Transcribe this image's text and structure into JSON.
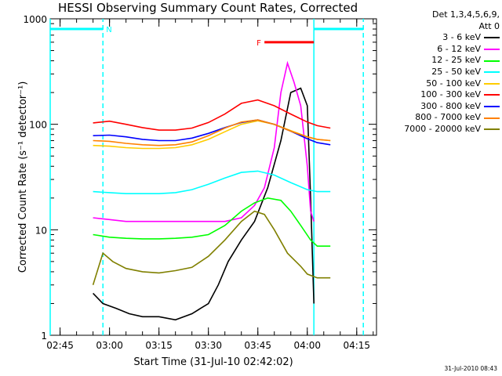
{
  "chart_data": {
    "type": "line",
    "title": "HESSI Observing Summary Count Rates, Corrected",
    "ylabel": "Corrected Count Rate (s⁻¹ detector⁻¹)",
    "xlabel": "Start Time (31-Jul-10 02:42:02)",
    "yscale": "log",
    "ylim": [
      1,
      1000
    ],
    "xlim": [
      "02:42",
      "04:21"
    ],
    "x_ticks": [
      "02:45",
      "03:00",
      "03:15",
      "03:30",
      "03:45",
      "04:00",
      "04:15"
    ],
    "y_ticks": [
      "1",
      "10",
      "100",
      "1000"
    ],
    "series": [
      {
        "name": "3 - 6 keV",
        "color": "#000000",
        "x": [
          "02:55",
          "02:58",
          "03:02",
          "03:06",
          "03:10",
          "03:15",
          "03:20",
          "03:25",
          "03:30",
          "03:33",
          "03:36",
          "03:40",
          "03:44",
          "03:48",
          "03:52",
          "03:55",
          "03:58",
          "04:00",
          "04:01",
          "04:02"
        ],
        "y": [
          2.5,
          2.0,
          1.8,
          1.6,
          1.5,
          1.5,
          1.4,
          1.6,
          2.0,
          3.0,
          5,
          8,
          12,
          25,
          70,
          200,
          220,
          150,
          20,
          2
        ]
      },
      {
        "name": "6 - 12 keV",
        "color": "#ff00ff",
        "x": [
          "02:55",
          "03:00",
          "03:05",
          "03:10",
          "03:15",
          "03:20",
          "03:25",
          "03:30",
          "03:35",
          "03:40",
          "03:44",
          "03:47",
          "03:50",
          "03:52",
          "03:54",
          "03:56",
          "03:58",
          "04:00",
          "04:01",
          "04:02"
        ],
        "y": [
          13,
          12.5,
          12,
          12,
          12,
          12,
          12,
          12,
          12,
          13,
          17,
          25,
          60,
          200,
          380,
          250,
          150,
          40,
          15,
          12
        ]
      },
      {
        "name": "12 - 25 keV",
        "color": "#00ff00",
        "x": [
          "02:55",
          "03:00",
          "03:05",
          "03:10",
          "03:15",
          "03:20",
          "03:25",
          "03:30",
          "03:35",
          "03:40",
          "03:44",
          "03:48",
          "03:52",
          "03:55",
          "03:58",
          "04:01",
          "04:03",
          "04:07"
        ],
        "y": [
          9,
          8.5,
          8.3,
          8.2,
          8.2,
          8.3,
          8.5,
          9,
          11,
          15,
          18,
          20,
          19,
          15,
          11,
          8,
          7,
          7
        ]
      },
      {
        "name": "25 - 50 keV",
        "color": "#00ffff",
        "x": [
          "02:55",
          "03:00",
          "03:05",
          "03:10",
          "03:15",
          "03:20",
          "03:25",
          "03:30",
          "03:35",
          "03:40",
          "03:45",
          "03:50",
          "03:55",
          "04:00",
          "04:03",
          "04:07"
        ],
        "y": [
          23,
          22.5,
          22,
          22,
          22,
          22.5,
          24,
          27,
          31,
          35,
          36,
          33,
          28,
          24,
          23,
          23
        ]
      },
      {
        "name": "50 - 100 keV",
        "color": "#ffcc00",
        "x": [
          "02:55",
          "03:00",
          "03:05",
          "03:10",
          "03:15",
          "03:20",
          "03:25",
          "03:30",
          "03:35",
          "03:40",
          "03:45",
          "03:50",
          "03:55",
          "04:00",
          "04:03",
          "04:07"
        ],
        "y": [
          63,
          62,
          60,
          59,
          59,
          60,
          64,
          72,
          85,
          100,
          108,
          100,
          87,
          76,
          72,
          70
        ]
      },
      {
        "name": "100 - 300 keV",
        "color": "#ff0000",
        "x": [
          "02:55",
          "03:00",
          "03:05",
          "03:10",
          "03:15",
          "03:20",
          "03:25",
          "03:30",
          "03:35",
          "03:40",
          "03:45",
          "03:50",
          "03:55",
          "04:00",
          "04:03",
          "04:07"
        ],
        "y": [
          103,
          107,
          100,
          93,
          88,
          88,
          92,
          104,
          125,
          158,
          170,
          150,
          125,
          105,
          97,
          92
        ]
      },
      {
        "name": "300 - 800 keV",
        "color": "#0000ff",
        "x": [
          "02:55",
          "03:00",
          "03:05",
          "03:10",
          "03:15",
          "03:20",
          "03:25",
          "03:30",
          "03:35",
          "03:40",
          "03:45",
          "03:50",
          "03:55",
          "04:00",
          "04:03",
          "04:07"
        ],
        "y": [
          78,
          79,
          76,
          72,
          70,
          70,
          74,
          82,
          93,
          104,
          110,
          100,
          86,
          73,
          67,
          64
        ]
      },
      {
        "name": "800 - 7000 keV",
        "color": "#ff8000",
        "x": [
          "02:55",
          "03:00",
          "03:05",
          "03:10",
          "03:15",
          "03:20",
          "03:25",
          "03:30",
          "03:35",
          "03:40",
          "03:45",
          "03:50",
          "03:55",
          "04:00",
          "04:03",
          "04:07"
        ],
        "y": [
          70,
          69,
          66,
          64,
          63,
          64,
          68,
          78,
          92,
          105,
          110,
          100,
          86,
          76,
          72,
          70
        ]
      },
      {
        "name": "7000 - 20000 keV",
        "color": "#808000",
        "x": [
          "02:55",
          "02:58",
          "03:01",
          "03:05",
          "03:10",
          "03:15",
          "03:20",
          "03:25",
          "03:30",
          "03:35",
          "03:40",
          "03:44",
          "03:47",
          "03:50",
          "03:54",
          "03:58",
          "04:00",
          "04:03",
          "04:07"
        ],
        "y": [
          3,
          6,
          5,
          4.3,
          4,
          3.9,
          4.1,
          4.4,
          5.6,
          8,
          12,
          15,
          14,
          10,
          6,
          4.5,
          3.8,
          3.5,
          3.5
        ]
      }
    ],
    "legend_header": "Det 1,3,4,5,6,9,\nAtt 0",
    "legend_placement": "right",
    "night": {
      "label": "N",
      "color": "#00ffff",
      "y": 800,
      "intervals": [
        [
          "02:42",
          "02:58"
        ],
        [
          "04:02",
          "04:17"
        ]
      ]
    },
    "flare": {
      "label": "F",
      "color": "#ff0000",
      "y": 600,
      "interval": [
        "03:47",
        "04:02"
      ]
    },
    "timestamp": "31-Jul-2010 08:43"
  }
}
